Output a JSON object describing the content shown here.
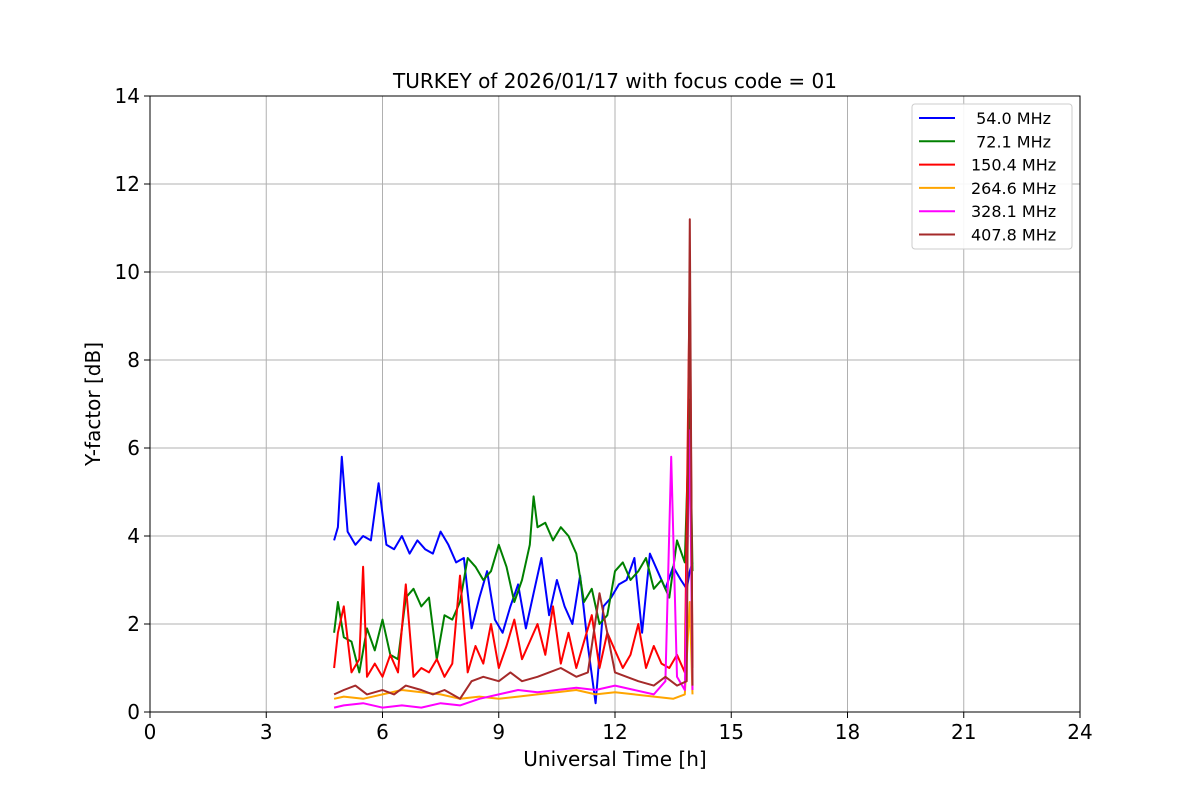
{
  "chart_data": {
    "type": "line",
    "title": "TURKEY of 2026/01/17 with focus code = 01",
    "xlabel": "Universal Time [h]",
    "ylabel": "Y-factor [dB]",
    "xlim": [
      0,
      24
    ],
    "ylim": [
      0,
      14
    ],
    "xticks": [
      0,
      3,
      6,
      9,
      12,
      15,
      18,
      21,
      24
    ],
    "yticks": [
      0,
      2,
      4,
      6,
      8,
      10,
      12,
      14
    ],
    "grid": true,
    "legend_position": "top-right",
    "series": [
      {
        "name": " 54.0 MHz",
        "color": "#0000ff",
        "x": [
          4.75,
          4.85,
          4.95,
          5.1,
          5.3,
          5.5,
          5.7,
          5.9,
          6.1,
          6.3,
          6.5,
          6.7,
          6.9,
          7.1,
          7.3,
          7.5,
          7.7,
          7.9,
          8.1,
          8.3,
          8.5,
          8.7,
          8.9,
          9.1,
          9.3,
          9.5,
          9.7,
          9.9,
          10.1,
          10.3,
          10.5,
          10.7,
          10.9,
          11.1,
          11.3,
          11.5,
          11.7,
          11.9,
          12.1,
          12.3,
          12.5,
          12.7,
          12.9,
          13.1,
          13.3,
          13.5,
          13.7,
          13.85,
          13.93,
          14.0
        ],
        "y": [
          3.9,
          4.2,
          5.8,
          4.1,
          3.8,
          4.0,
          3.9,
          5.2,
          3.8,
          3.7,
          4.0,
          3.6,
          3.9,
          3.7,
          3.6,
          4.1,
          3.8,
          3.4,
          3.5,
          1.9,
          2.6,
          3.2,
          2.1,
          1.8,
          2.4,
          2.9,
          1.9,
          2.7,
          3.5,
          2.2,
          3.0,
          2.4,
          2.0,
          3.1,
          1.5,
          0.2,
          2.4,
          2.6,
          2.9,
          3.0,
          3.5,
          1.8,
          3.6,
          3.2,
          2.8,
          3.3,
          3.0,
          2.8,
          3.2,
          3.4
        ]
      },
      {
        "name": " 72.1 MHz",
        "color": "#008000",
        "x": [
          4.75,
          4.85,
          5.0,
          5.2,
          5.4,
          5.6,
          5.8,
          6.0,
          6.2,
          6.4,
          6.6,
          6.8,
          7.0,
          7.2,
          7.4,
          7.6,
          7.8,
          8.0,
          8.2,
          8.4,
          8.6,
          8.8,
          9.0,
          9.2,
          9.4,
          9.6,
          9.8,
          9.9,
          10.0,
          10.2,
          10.4,
          10.6,
          10.8,
          11.0,
          11.2,
          11.4,
          11.6,
          11.8,
          12.0,
          12.2,
          12.4,
          12.6,
          12.8,
          13.0,
          13.2,
          13.4,
          13.6,
          13.8,
          13.93,
          14.0
        ],
        "y": [
          1.8,
          2.5,
          1.7,
          1.6,
          0.9,
          1.9,
          1.4,
          2.1,
          1.3,
          1.2,
          2.6,
          2.8,
          2.4,
          2.6,
          1.2,
          2.2,
          2.1,
          2.5,
          3.5,
          3.3,
          3.0,
          3.2,
          3.8,
          3.3,
          2.5,
          3.0,
          3.8,
          4.9,
          4.2,
          4.3,
          3.9,
          4.2,
          4.0,
          3.6,
          2.5,
          2.8,
          2.0,
          2.2,
          3.2,
          3.4,
          3.0,
          3.2,
          3.5,
          2.8,
          3.0,
          2.6,
          3.9,
          3.4,
          7.1,
          3.2
        ]
      },
      {
        "name": "150.4 MHz",
        "color": "#ff0000",
        "x": [
          4.75,
          4.85,
          5.0,
          5.2,
          5.4,
          5.5,
          5.6,
          5.8,
          6.0,
          6.2,
          6.4,
          6.6,
          6.8,
          7.0,
          7.2,
          7.4,
          7.6,
          7.8,
          8.0,
          8.2,
          8.4,
          8.6,
          8.8,
          9.0,
          9.2,
          9.4,
          9.6,
          9.8,
          10.0,
          10.2,
          10.4,
          10.6,
          10.8,
          11.0,
          11.2,
          11.4,
          11.6,
          11.8,
          12.0,
          12.2,
          12.4,
          12.6,
          12.8,
          13.0,
          13.2,
          13.4,
          13.6,
          13.8,
          13.93,
          14.0
        ],
        "y": [
          1.0,
          1.8,
          2.4,
          0.9,
          1.2,
          3.3,
          0.8,
          1.1,
          0.8,
          1.3,
          0.9,
          2.9,
          0.8,
          1.0,
          0.9,
          1.2,
          0.8,
          1.1,
          3.1,
          0.9,
          1.5,
          1.1,
          2.0,
          1.0,
          1.5,
          2.1,
          1.2,
          1.6,
          2.0,
          1.3,
          2.4,
          1.1,
          1.8,
          1.0,
          1.6,
          2.2,
          1.0,
          1.8,
          1.4,
          1.0,
          1.3,
          2.0,
          1.0,
          1.5,
          1.1,
          1.0,
          1.3,
          0.9,
          10.0,
          1.0
        ]
      },
      {
        "name": "264.6 MHz",
        "color": "#ffa500",
        "x": [
          4.75,
          5.0,
          5.5,
          6.0,
          6.5,
          7.0,
          7.5,
          8.0,
          8.5,
          9.0,
          9.5,
          10.0,
          10.5,
          11.0,
          11.5,
          12.0,
          12.5,
          13.0,
          13.5,
          13.8,
          13.93,
          14.0
        ],
        "y": [
          0.3,
          0.35,
          0.3,
          0.4,
          0.5,
          0.45,
          0.4,
          0.3,
          0.35,
          0.3,
          0.35,
          0.4,
          0.45,
          0.5,
          0.4,
          0.45,
          0.4,
          0.35,
          0.3,
          0.4,
          2.5,
          0.4
        ]
      },
      {
        "name": "328.1 MHz",
        "color": "#ff00ff",
        "x": [
          4.75,
          5.0,
          5.5,
          6.0,
          6.5,
          7.0,
          7.5,
          8.0,
          8.5,
          9.0,
          9.5,
          10.0,
          10.5,
          11.0,
          11.5,
          12.0,
          12.5,
          13.0,
          13.3,
          13.45,
          13.6,
          13.8,
          13.93,
          14.0
        ],
        "y": [
          0.1,
          0.15,
          0.2,
          0.1,
          0.15,
          0.1,
          0.2,
          0.15,
          0.3,
          0.4,
          0.5,
          0.45,
          0.5,
          0.55,
          0.5,
          0.6,
          0.5,
          0.4,
          0.7,
          5.8,
          0.8,
          0.5,
          6.4,
          0.5
        ]
      },
      {
        "name": "407.8 MHz",
        "color": "#a52a2a",
        "x": [
          4.75,
          5.0,
          5.3,
          5.6,
          6.0,
          6.3,
          6.6,
          7.0,
          7.3,
          7.6,
          8.0,
          8.3,
          8.6,
          9.0,
          9.3,
          9.6,
          10.0,
          10.3,
          10.6,
          11.0,
          11.3,
          11.6,
          12.0,
          12.3,
          12.6,
          13.0,
          13.3,
          13.6,
          13.85,
          13.93,
          14.0
        ],
        "y": [
          0.4,
          0.5,
          0.6,
          0.4,
          0.5,
          0.4,
          0.6,
          0.5,
          0.4,
          0.5,
          0.3,
          0.7,
          0.8,
          0.7,
          0.9,
          0.7,
          0.8,
          0.9,
          1.0,
          0.8,
          0.9,
          2.7,
          0.9,
          0.8,
          0.7,
          0.6,
          0.8,
          0.6,
          0.7,
          11.2,
          0.6
        ]
      }
    ]
  }
}
